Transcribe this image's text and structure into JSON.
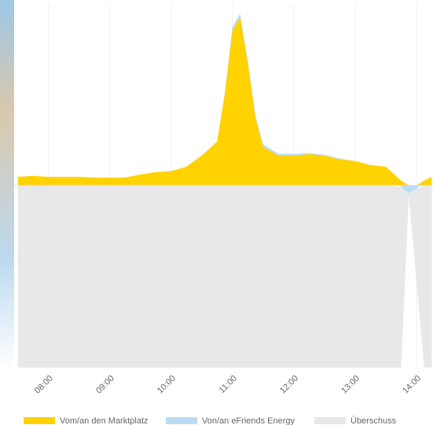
{
  "chart_data": {
    "type": "area",
    "x": [
      7.5,
      7.75,
      8.0,
      8.25,
      8.5,
      8.75,
      9.0,
      9.25,
      9.5,
      9.75,
      10.0,
      10.25,
      10.5,
      10.75,
      10.875,
      11.0,
      11.125,
      11.25,
      11.375,
      11.5,
      11.75,
      12.0,
      12.25,
      12.5,
      12.75,
      13.0,
      13.25,
      13.5,
      13.75,
      13.875,
      14.0,
      14.125,
      14.25
    ],
    "series": [
      {
        "name": "Vom/an den Marktplatz",
        "color": "#ffd200",
        "values": [
          4.7,
          5.2,
          4.7,
          4.7,
          4.7,
          4.3,
          4.3,
          4.3,
          6.0,
          7.3,
          7.8,
          10.3,
          16.4,
          24.1,
          50,
          85,
          92.2,
          67,
          37,
          21,
          16.3,
          16.3,
          17.2,
          16.3,
          14.2,
          13.4,
          11.2,
          10.3,
          2.6,
          0,
          0,
          2.6,
          4.7
        ]
      },
      {
        "name": "Von/an eFriends Energy",
        "color": "#b9dcf5",
        "values": [
          0,
          0,
          0,
          0,
          0,
          0,
          0,
          0,
          0,
          0,
          0,
          0,
          0,
          0,
          1,
          2,
          2,
          2,
          1.5,
          1.5,
          1,
          1,
          0.5,
          0.5,
          0.5,
          0,
          0,
          0,
          -1,
          -4.3,
          -2,
          0,
          0
        ]
      },
      {
        "name": "Überschuss",
        "color": "#e8e8e8",
        "values": [
          -100,
          -100,
          -100,
          -100,
          -100,
          -100,
          -100,
          -100,
          -100,
          -100,
          -100,
          -100,
          -100,
          -100,
          -100,
          -100,
          -100,
          -100,
          -100,
          -100,
          -100,
          -100,
          -100,
          -100,
          -100,
          -100,
          -100,
          -100,
          -99,
          -2,
          -50,
          -100,
          -100
        ]
      }
    ],
    "xlim": [
      7.44,
      14.27
    ],
    "xticks": [
      {
        "value": 8,
        "label": "08:00"
      },
      {
        "value": 9,
        "label": "09:00"
      },
      {
        "value": 10,
        "label": "10:00"
      },
      {
        "value": 11,
        "label": "11:00"
      },
      {
        "value": 12,
        "label": "12:00"
      },
      {
        "value": 13,
        "label": "13:00"
      },
      {
        "value": 14,
        "label": "14:00"
      }
    ],
    "ylim": [
      -100,
      100
    ],
    "grid": true
  }
}
